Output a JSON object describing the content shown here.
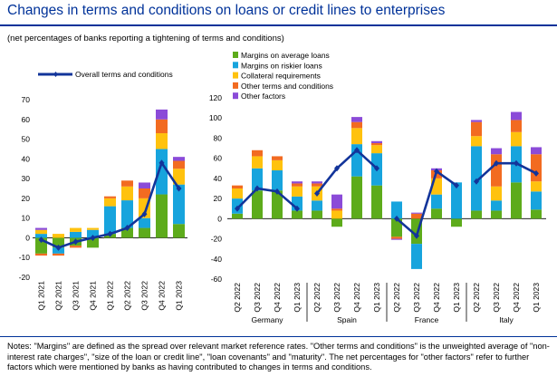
{
  "header": {
    "title": "Changes in terms and conditions on loans or credit lines to enterprises",
    "subtitle": "(net percentages of banks reporting a tightening of terms and conditions)"
  },
  "notes": "Notes: \"Margins\" are defined as the spread over relevant market reference rates. \"Other terms and conditions\" is the unweighted average of \"non-interest rate charges\", \"size of the loan or credit line\", \"loan covenants\" and \"maturity\". The net percentages for \"other factors\" refer to further factors which were mentioned by banks as having contributed to changes in terms and conditions.",
  "colors": {
    "margins_average": "#5dab1b",
    "margins_riskier": "#17a4dd",
    "collateral": "#ffc20e",
    "other_terms": "#f26b21",
    "other_factors": "#8b4bd8",
    "overall_line": "#12349a"
  },
  "chart_data": {
    "type": "bar",
    "subtype": "stacked-bar-with-line",
    "legend": [
      {
        "key": "overall",
        "label": "Overall terms and conditions",
        "kind": "line"
      },
      {
        "key": "margins_average",
        "label": "Margins on average loans",
        "kind": "bar"
      },
      {
        "key": "margins_riskier",
        "label": "Margins on riskier loans",
        "kind": "bar"
      },
      {
        "key": "collateral",
        "label": "Collateral requirements",
        "kind": "bar"
      },
      {
        "key": "other_terms",
        "label": "Other terms and conditions",
        "kind": "bar"
      },
      {
        "key": "other_factors",
        "label": "Other factors",
        "kind": "bar"
      }
    ],
    "stack_order": [
      "margins_average",
      "margins_riskier",
      "collateral",
      "other_terms",
      "other_factors"
    ],
    "panels": [
      {
        "name": "",
        "ylim": [
          -20,
          70
        ],
        "yticks": [
          -20,
          -10,
          0,
          10,
          20,
          30,
          40,
          50,
          60,
          70
        ],
        "categories": [
          "Q1 2021",
          "Q2 2021",
          "Q3 2021",
          "Q4 2021",
          "Q1 2022",
          "Q2 2022",
          "Q3 2022",
          "Q4 2022",
          "Q1 2023"
        ],
        "bars": [
          {
            "margins_average": -8,
            "margins_riskier": 2,
            "collateral": 2,
            "other_terms": -1,
            "other_factors": 1
          },
          {
            "margins_average": -5,
            "margins_riskier": -3,
            "collateral": 2,
            "other_terms": -1,
            "other_factors": 0
          },
          {
            "margins_average": -4,
            "margins_riskier": 3,
            "collateral": 2,
            "other_terms": -1,
            "other_factors": 0
          },
          {
            "margins_average": -5,
            "margins_riskier": 4,
            "collateral": 1,
            "other_terms": 0,
            "other_factors": 0
          },
          {
            "margins_average": 2,
            "margins_riskier": 14,
            "collateral": 4,
            "other_terms": 1,
            "other_factors": 0
          },
          {
            "margins_average": 5,
            "margins_riskier": 14,
            "collateral": 7,
            "other_terms": 3,
            "other_factors": 0
          },
          {
            "margins_average": 5,
            "margins_riskier": 5,
            "collateral": 10,
            "other_terms": 5,
            "other_factors": 3
          },
          {
            "margins_average": 22,
            "margins_riskier": 23,
            "collateral": 8,
            "other_terms": 7,
            "other_factors": 5
          },
          {
            "margins_average": 7,
            "margins_riskier": 20,
            "collateral": 8,
            "other_terms": 4,
            "other_factors": 2
          }
        ],
        "overall": [
          -1,
          -5,
          -2,
          0,
          2,
          5,
          12,
          38,
          25
        ]
      },
      {
        "name": "Germany",
        "ylim": [
          -60,
          120
        ],
        "yticks": [
          -60,
          -40,
          -20,
          0,
          20,
          40,
          60,
          80,
          100,
          120
        ],
        "categories": [
          "Q2 2022",
          "Q3 2022",
          "Q4 2022",
          "Q1 2023"
        ],
        "bars": [
          {
            "margins_average": 5,
            "margins_riskier": 15,
            "collateral": 10,
            "other_terms": 3,
            "other_factors": 0
          },
          {
            "margins_average": 28,
            "margins_riskier": 22,
            "collateral": 12,
            "other_terms": 6,
            "other_factors": 0
          },
          {
            "margins_average": 28,
            "margins_riskier": 20,
            "collateral": 10,
            "other_terms": 4,
            "other_factors": 0
          },
          {
            "margins_average": 8,
            "margins_riskier": 14,
            "collateral": 10,
            "other_terms": 3,
            "other_factors": 2
          }
        ],
        "overall": [
          10,
          30,
          27,
          10
        ]
      },
      {
        "name": "Spain",
        "ylim": [
          -60,
          120
        ],
        "categories": [
          "Q2 2022",
          "Q3 2022",
          "Q4 2022",
          "Q1 2023"
        ],
        "bars": [
          {
            "margins_average": 8,
            "margins_riskier": 10,
            "collateral": 14,
            "other_terms": 3,
            "other_factors": 2
          },
          {
            "margins_average": -8,
            "margins_riskier": 0,
            "collateral": 8,
            "other_terms": 2,
            "other_factors": 14
          },
          {
            "margins_average": 42,
            "margins_riskier": 32,
            "collateral": 16,
            "other_terms": 6,
            "other_factors": 5
          },
          {
            "margins_average": 33,
            "margins_riskier": 32,
            "collateral": 8,
            "other_terms": 2,
            "other_factors": 2
          }
        ],
        "overall": [
          25,
          50,
          68,
          50
        ]
      },
      {
        "name": "France",
        "ylim": [
          -60,
          120
        ],
        "categories": [
          "Q2 2022",
          "Q3 2022",
          "Q4 2022",
          "Q1 2023"
        ],
        "bars": [
          {
            "margins_average": -18,
            "margins_riskier": 17,
            "collateral": 0,
            "other_terms": -2,
            "other_factors": -1
          },
          {
            "margins_average": -25,
            "margins_riskier": -25,
            "collateral": 0,
            "other_terms": 5,
            "other_factors": 1
          },
          {
            "margins_average": 10,
            "margins_riskier": 14,
            "collateral": 16,
            "other_terms": 8,
            "other_factors": 2
          },
          {
            "margins_average": -8,
            "margins_riskier": 36,
            "collateral": 0,
            "other_terms": 0,
            "other_factors": 0
          }
        ],
        "overall": [
          0,
          -17,
          47,
          33
        ]
      },
      {
        "name": "Italy",
        "ylim": [
          -60,
          120
        ],
        "categories": [
          "Q2 2022",
          "Q3 2022",
          "Q4 2022",
          "Q1 2023"
        ],
        "bars": [
          {
            "margins_average": 8,
            "margins_riskier": 64,
            "collateral": 10,
            "other_terms": 14,
            "other_factors": 2
          },
          {
            "margins_average": 8,
            "margins_riskier": 10,
            "collateral": 14,
            "other_terms": 32,
            "other_factors": 6
          },
          {
            "margins_average": 36,
            "margins_riskier": 36,
            "collateral": 14,
            "other_terms": 12,
            "other_factors": 8
          },
          {
            "margins_average": 9,
            "margins_riskier": 18,
            "collateral": 10,
            "other_terms": 27,
            "other_factors": 7
          }
        ],
        "overall": [
          37,
          55,
          55,
          45
        ]
      }
    ]
  }
}
